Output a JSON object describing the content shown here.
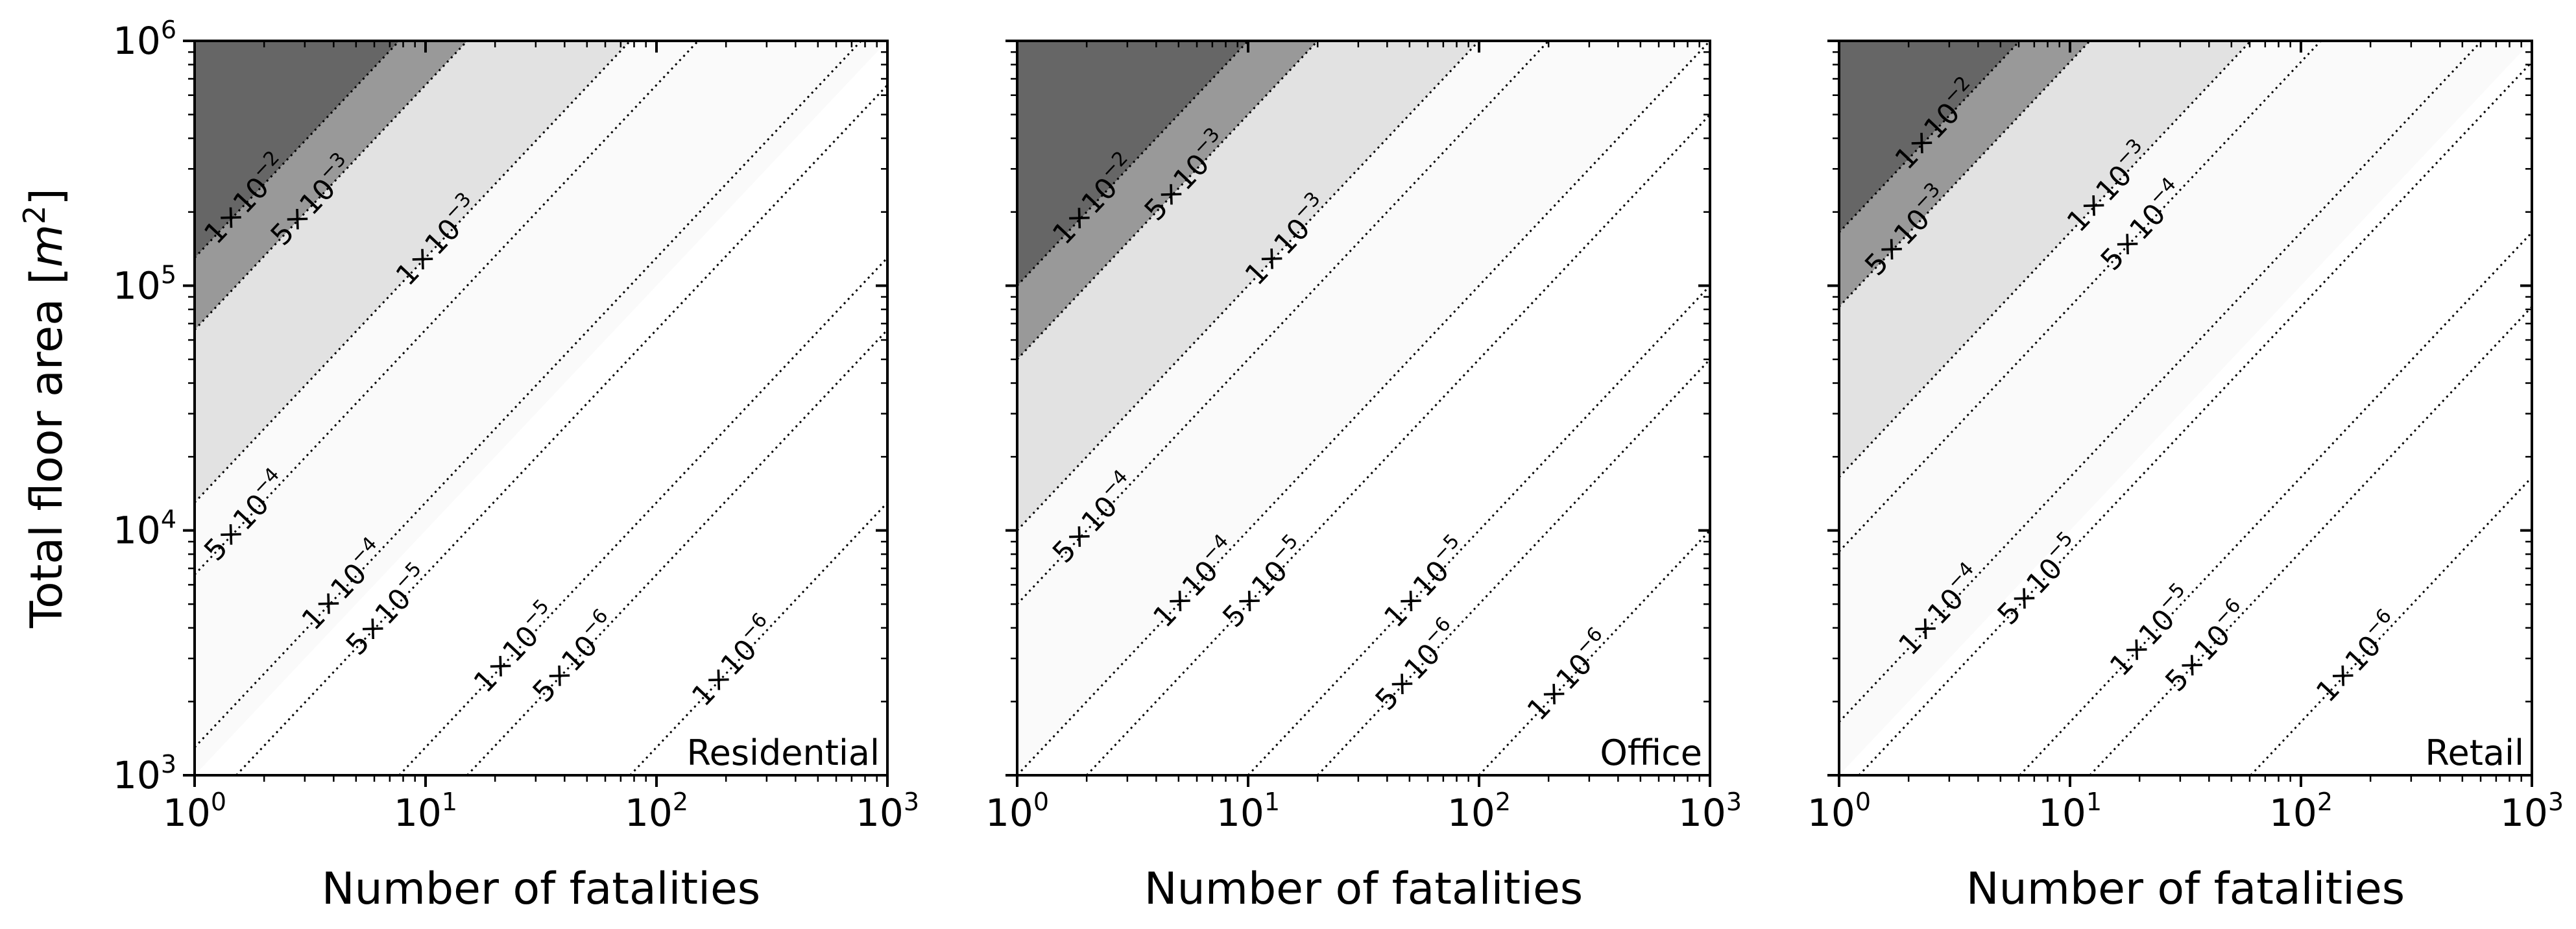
{
  "chart_data": [
    {
      "type": "contour",
      "title": "",
      "panel_label": "Residential",
      "xlabel": "Number of fatalities",
      "ylabel": "Total floor area [m²]",
      "ylabel_main": "Total floor area [",
      "ylabel_m": "m",
      "ylabel_sup": "2",
      "ylabel_close": "]",
      "x_scale": "log",
      "y_scale": "log",
      "xlim": [
        1,
        1000
      ],
      "ylim": [
        1000,
        1000000
      ],
      "x_ticks": [
        {
          "value": 1,
          "base": "10",
          "exp": "0"
        },
        {
          "value": 10,
          "base": "10",
          "exp": "1"
        },
        {
          "value": 100,
          "base": "10",
          "exp": "2"
        },
        {
          "value": 1000,
          "base": "10",
          "exp": "3"
        }
      ],
      "y_ticks": [
        {
          "value": 1000,
          "base": "10",
          "exp": "3"
        },
        {
          "value": 10000,
          "base": "10",
          "exp": "4"
        },
        {
          "value": 100000,
          "base": "10",
          "exp": "5"
        },
        {
          "value": 1000000,
          "base": "10",
          "exp": "6"
        }
      ],
      "filled_regions": [
        {
          "level": "≥ 1×10⁻²",
          "color": "#666666",
          "floor_area_at_1_fatality": 130000
        },
        {
          "level": "5×10⁻³ – 1×10⁻²",
          "color": "#999999",
          "floor_area_at_1_fatality": 66000
        },
        {
          "level": "1×10⁻³ – 5×10⁻³",
          "color": "#e2e2e2",
          "floor_area_at_1_fatality": 13000
        },
        {
          "level": "< 1×10⁻³",
          "color": "#fafafa",
          "floor_area_at_1_fatality": 1000
        }
      ],
      "contour_lines": [
        {
          "label_mantissa": "1",
          "label_exp": "−2",
          "floor_area_at_1_fatality": 130000,
          "label_at_fatalities": 1.7
        },
        {
          "label_mantissa": "5",
          "label_exp": "−3",
          "floor_area_at_1_fatality": 66000,
          "label_at_fatalities": 3.3
        },
        {
          "label_mantissa": "1",
          "label_exp": "−3",
          "floor_area_at_1_fatality": 13000,
          "label_at_fatalities": 11.5
        },
        {
          "label_mantissa": "5",
          "label_exp": "−4",
          "floor_area_at_1_fatality": 6600,
          "label_at_fatalities": 1.7
        },
        {
          "label_mantissa": "1",
          "label_exp": "−4",
          "floor_area_at_1_fatality": 1300,
          "label_at_fatalities": 4.5
        },
        {
          "label_mantissa": "5",
          "label_exp": "−5",
          "floor_area_at_1_fatality": 660,
          "label_at_fatalities": 7
        },
        {
          "label_mantissa": "1",
          "label_exp": "−5",
          "floor_area_at_1_fatality": 130,
          "label_at_fatalities": 25
        },
        {
          "label_mantissa": "5",
          "label_exp": "−6",
          "floor_area_at_1_fatality": 66,
          "label_at_fatalities": 45
        },
        {
          "label_mantissa": "1",
          "label_exp": "−6",
          "floor_area_at_1_fatality": 13,
          "label_at_fatalities": 220
        }
      ]
    },
    {
      "type": "contour",
      "title": "",
      "panel_label": "Office",
      "xlabel": "Number of fatalities",
      "ylabel": "",
      "x_scale": "log",
      "y_scale": "log",
      "xlim": [
        1,
        1000
      ],
      "ylim": [
        1000,
        1000000
      ],
      "x_ticks": [
        {
          "value": 1,
          "base": "10",
          "exp": "0"
        },
        {
          "value": 10,
          "base": "10",
          "exp": "1"
        },
        {
          "value": 100,
          "base": "10",
          "exp": "2"
        },
        {
          "value": 1000,
          "base": "10",
          "exp": "3"
        }
      ],
      "y_ticks": [
        {
          "value": 1000
        },
        {
          "value": 10000
        },
        {
          "value": 100000
        },
        {
          "value": 1000000
        }
      ],
      "filled_regions": [
        {
          "level": "≥ 1×10⁻²",
          "color": "#666666",
          "floor_area_at_1_fatality": 100000
        },
        {
          "level": "5×10⁻³ – 1×10⁻²",
          "color": "#999999",
          "floor_area_at_1_fatality": 50000
        },
        {
          "level": "1×10⁻³ – 5×10⁻³",
          "color": "#e2e2e2",
          "floor_area_at_1_fatality": 10000
        },
        {
          "level": "< 1×10⁻³",
          "color": "#fafafa",
          "floor_area_at_1_fatality": 1000
        }
      ],
      "contour_lines": [
        {
          "label_mantissa": "1",
          "label_exp": "−2",
          "floor_area_at_1_fatality": 100000,
          "label_at_fatalities": 2.2
        },
        {
          "label_mantissa": "5",
          "label_exp": "−3",
          "floor_area_at_1_fatality": 50000,
          "label_at_fatalities": 5.5
        },
        {
          "label_mantissa": "1",
          "label_exp": "−3",
          "floor_area_at_1_fatality": 10000,
          "label_at_fatalities": 15
        },
        {
          "label_mantissa": "5",
          "label_exp": "−4",
          "floor_area_at_1_fatality": 5000,
          "label_at_fatalities": 2.2
        },
        {
          "label_mantissa": "1",
          "label_exp": "−4",
          "floor_area_at_1_fatality": 1000,
          "label_at_fatalities": 6
        },
        {
          "label_mantissa": "5",
          "label_exp": "−5",
          "floor_area_at_1_fatality": 500,
          "label_at_fatalities": 12
        },
        {
          "label_mantissa": "1",
          "label_exp": "−5",
          "floor_area_at_1_fatality": 100,
          "label_at_fatalities": 60
        },
        {
          "label_mantissa": "5",
          "label_exp": "−6",
          "floor_area_at_1_fatality": 50,
          "label_at_fatalities": 55
        },
        {
          "label_mantissa": "1",
          "label_exp": "−6",
          "floor_area_at_1_fatality": 10,
          "label_at_fatalities": 250
        }
      ]
    },
    {
      "type": "contour",
      "title": "",
      "panel_label": "Retail",
      "xlabel": "Number of fatalities",
      "ylabel": "",
      "x_scale": "log",
      "y_scale": "log",
      "xlim": [
        1,
        1000
      ],
      "ylim": [
        1000,
        1000000
      ],
      "x_ticks": [
        {
          "value": 1,
          "base": "10",
          "exp": "0"
        },
        {
          "value": 10,
          "base": "10",
          "exp": "1"
        },
        {
          "value": 100,
          "base": "10",
          "exp": "2"
        },
        {
          "value": 1000,
          "base": "10",
          "exp": "3"
        }
      ],
      "y_ticks": [
        {
          "value": 1000
        },
        {
          "value": 10000
        },
        {
          "value": 100000
        },
        {
          "value": 1000000
        }
      ],
      "filled_regions": [
        {
          "level": "≥ 1×10⁻²",
          "color": "#666666",
          "floor_area_at_1_fatality": 165000
        },
        {
          "level": "5×10⁻³ – 1×10⁻²",
          "color": "#999999",
          "floor_area_at_1_fatality": 82000
        },
        {
          "level": "1×10⁻³ – 5×10⁻³",
          "color": "#e2e2e2",
          "floor_area_at_1_fatality": 16500
        },
        {
          "level": "< 1×10⁻³",
          "color": "#fafafa",
          "floor_area_at_1_fatality": 1000
        }
      ],
      "contour_lines": [
        {
          "label_mantissa": "1",
          "label_exp": "−2",
          "floor_area_at_1_fatality": 165000,
          "label_at_fatalities": 2.7
        },
        {
          "label_mantissa": "5",
          "label_exp": "−3",
          "floor_area_at_1_fatality": 82000,
          "label_at_fatalities": 2.0
        },
        {
          "label_mantissa": "1",
          "label_exp": "−3",
          "floor_area_at_1_fatality": 16500,
          "label_at_fatalities": 15
        },
        {
          "label_mantissa": "5",
          "label_exp": "−4",
          "floor_area_at_1_fatality": 8200,
          "label_at_fatalities": 21
        },
        {
          "label_mantissa": "1",
          "label_exp": "−4",
          "floor_area_at_1_fatality": 1650,
          "label_at_fatalities": 2.8
        },
        {
          "label_mantissa": "5",
          "label_exp": "−5",
          "floor_area_at_1_fatality": 820,
          "label_at_fatalities": 7.5
        },
        {
          "label_mantissa": "1",
          "label_exp": "−5",
          "floor_area_at_1_fatality": 165,
          "label_at_fatalities": 23
        },
        {
          "label_mantissa": "5",
          "label_exp": "−6",
          "floor_area_at_1_fatality": 82,
          "label_at_fatalities": 40
        },
        {
          "label_mantissa": "1",
          "label_exp": "−6",
          "floor_area_at_1_fatality": 16.5,
          "label_at_fatalities": 180
        }
      ]
    }
  ]
}
